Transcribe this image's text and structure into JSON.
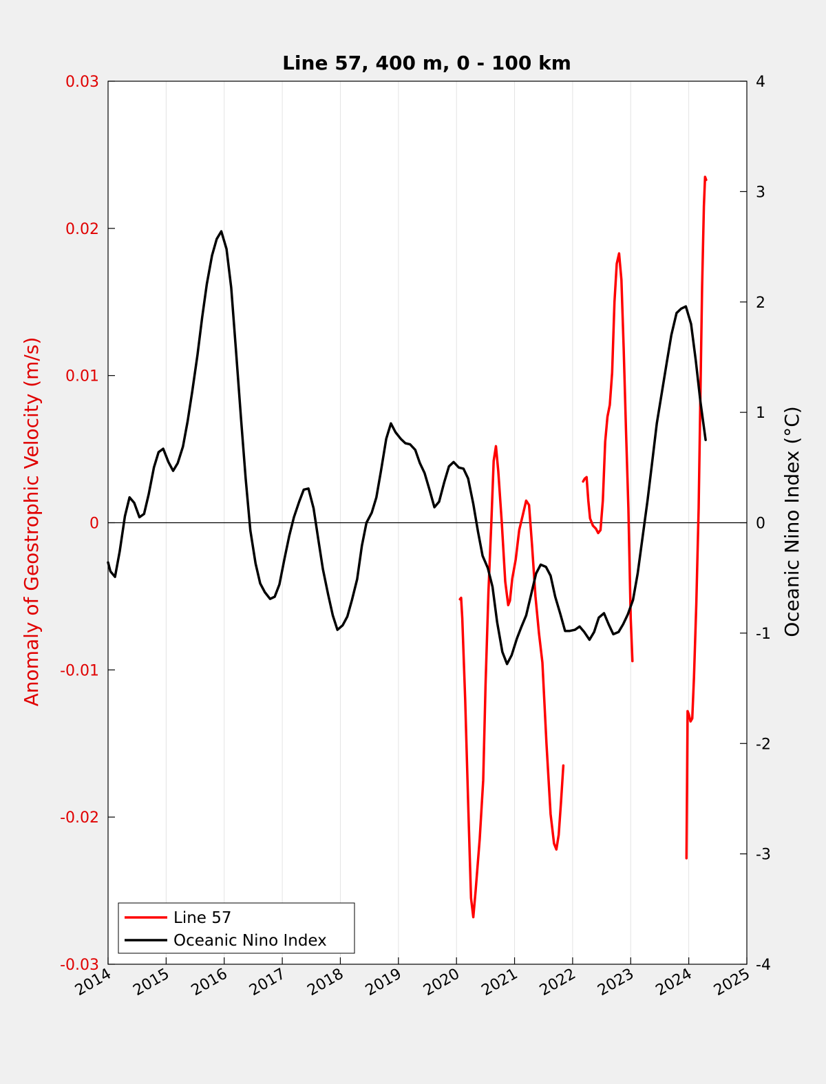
{
  "chart_data": {
    "type": "line",
    "title": "Line 57, 400 m, 0 - 100 km",
    "ylabel_left": "Anomaly of Geostrophic Velocity (m/s)",
    "ylabel_right": "Oceanic Nino Index (°C)",
    "xlim": [
      2014,
      2025
    ],
    "ylim_left": [
      -0.03,
      0.03
    ],
    "ylim_right": [
      -4,
      4
    ],
    "x_ticks": [
      "2014",
      "2015",
      "2016",
      "2017",
      "2018",
      "2019",
      "2020",
      "2021",
      "2022",
      "2023",
      "2024",
      "2025"
    ],
    "y_left_ticks": [
      "-0.03",
      "-0.02",
      "-0.01",
      "0",
      "0.01",
      "0.02",
      "0.03"
    ],
    "y_right_ticks": [
      "-4",
      "-3",
      "-2",
      "-1",
      "0",
      "1",
      "2",
      "3",
      "4"
    ],
    "vertical_grid": true,
    "zero_line": true,
    "legend_position": "bottom-left",
    "colors": {
      "left_axis": "#e00000",
      "line57": "#ff0000",
      "oni": "#000000",
      "plot_bg": "#ffffff",
      "figure_bg": "#f0f0f0"
    },
    "series": [
      {
        "name": "Line 57",
        "axis": "left",
        "color": "#ff0000",
        "segments": [
          [
            [
              2020.06,
              -0.0052
            ],
            [
              2020.08,
              -0.0051
            ],
            [
              2020.1,
              -0.0065
            ],
            [
              2020.15,
              -0.012
            ],
            [
              2020.2,
              -0.019
            ],
            [
              2020.25,
              -0.0255
            ],
            [
              2020.29,
              -0.0268
            ],
            [
              2020.33,
              -0.025
            ],
            [
              2020.4,
              -0.0215
            ],
            [
              2020.46,
              -0.0175
            ],
            [
              2020.5,
              -0.011
            ],
            [
              2020.55,
              -0.0047
            ],
            [
              2020.6,
              0.0
            ],
            [
              2020.64,
              0.0042
            ],
            [
              2020.68,
              0.0052
            ],
            [
              2020.72,
              0.0035
            ],
            [
              2020.78,
              0.0
            ],
            [
              2020.84,
              -0.004
            ],
            [
              2020.89,
              -0.0056
            ],
            [
              2020.92,
              -0.0053
            ],
            [
              2020.96,
              -0.0038
            ],
            [
              2021.02,
              -0.0025
            ],
            [
              2021.08,
              -0.0005
            ],
            [
              2021.14,
              0.0005
            ],
            [
              2021.2,
              0.0015
            ],
            [
              2021.25,
              0.0012
            ],
            [
              2021.3,
              -0.0015
            ],
            [
              2021.36,
              -0.005
            ],
            [
              2021.42,
              -0.0075
            ],
            [
              2021.48,
              -0.0095
            ],
            [
              2021.55,
              -0.015
            ],
            [
              2021.62,
              -0.0198
            ],
            [
              2021.68,
              -0.0218
            ],
            [
              2021.72,
              -0.0222
            ],
            [
              2021.76,
              -0.0212
            ],
            [
              2021.8,
              -0.019
            ],
            [
              2021.84,
              -0.0165
            ]
          ],
          [
            [
              2022.18,
              0.0028
            ],
            [
              2022.21,
              0.003
            ],
            [
              2022.24,
              0.0031
            ],
            [
              2022.27,
              0.0015
            ],
            [
              2022.3,
              0.0003
            ],
            [
              2022.35,
              -0.0002
            ],
            [
              2022.4,
              -0.0004
            ],
            [
              2022.44,
              -0.0007
            ],
            [
              2022.48,
              -0.0005
            ],
            [
              2022.52,
              0.0015
            ],
            [
              2022.56,
              0.0055
            ],
            [
              2022.6,
              0.0072
            ],
            [
              2022.64,
              0.008
            ],
            [
              2022.68,
              0.0102
            ],
            [
              2022.72,
              0.015
            ],
            [
              2022.76,
              0.0176
            ],
            [
              2022.8,
              0.0183
            ],
            [
              2022.84,
              0.0165
            ],
            [
              2022.88,
              0.0118
            ],
            [
              2022.92,
              0.0062
            ],
            [
              2022.96,
              0.001
            ],
            [
              2023.0,
              -0.0065
            ],
            [
              2023.03,
              -0.0094
            ]
          ],
          [
            [
              2023.96,
              -0.0228
            ],
            [
              2023.97,
              -0.018
            ],
            [
              2023.98,
              -0.0128
            ],
            [
              2024.0,
              -0.013
            ],
            [
              2024.03,
              -0.0135
            ],
            [
              2024.06,
              -0.0133
            ],
            [
              2024.09,
              -0.0105
            ],
            [
              2024.13,
              -0.0055
            ],
            [
              2024.17,
              0.001
            ],
            [
              2024.2,
              0.0085
            ],
            [
              2024.23,
              0.016
            ],
            [
              2024.26,
              0.0215
            ],
            [
              2024.28,
              0.0235
            ],
            [
              2024.3,
              0.0233
            ]
          ]
        ]
      },
      {
        "name": "Oceanic Nino Index",
        "axis": "right",
        "color": "#000000",
        "points": [
          [
            2014.0,
            -0.36
          ],
          [
            2014.04,
            -0.44
          ],
          [
            2014.12,
            -0.49
          ],
          [
            2014.2,
            -0.26
          ],
          [
            2014.29,
            0.06
          ],
          [
            2014.37,
            0.23
          ],
          [
            2014.45,
            0.18
          ],
          [
            2014.54,
            0.05
          ],
          [
            2014.62,
            0.08
          ],
          [
            2014.7,
            0.26
          ],
          [
            2014.79,
            0.5
          ],
          [
            2014.87,
            0.64
          ],
          [
            2014.95,
            0.67
          ],
          [
            2015.04,
            0.55
          ],
          [
            2015.12,
            0.47
          ],
          [
            2015.2,
            0.54
          ],
          [
            2015.29,
            0.69
          ],
          [
            2015.37,
            0.92
          ],
          [
            2015.45,
            1.19
          ],
          [
            2015.54,
            1.52
          ],
          [
            2015.62,
            1.86
          ],
          [
            2015.7,
            2.16
          ],
          [
            2015.79,
            2.42
          ],
          [
            2015.87,
            2.57
          ],
          [
            2015.95,
            2.64
          ],
          [
            2016.04,
            2.48
          ],
          [
            2016.12,
            2.13
          ],
          [
            2016.2,
            1.58
          ],
          [
            2016.29,
            0.94
          ],
          [
            2016.37,
            0.4
          ],
          [
            2016.45,
            -0.07
          ],
          [
            2016.54,
            -0.37
          ],
          [
            2016.62,
            -0.55
          ],
          [
            2016.7,
            -0.63
          ],
          [
            2016.79,
            -0.69
          ],
          [
            2016.87,
            -0.67
          ],
          [
            2016.95,
            -0.56
          ],
          [
            2017.04,
            -0.32
          ],
          [
            2017.12,
            -0.12
          ],
          [
            2017.2,
            0.05
          ],
          [
            2017.29,
            0.19
          ],
          [
            2017.37,
            0.3
          ],
          [
            2017.45,
            0.31
          ],
          [
            2017.54,
            0.13
          ],
          [
            2017.62,
            -0.15
          ],
          [
            2017.7,
            -0.42
          ],
          [
            2017.79,
            -0.65
          ],
          [
            2017.87,
            -0.84
          ],
          [
            2017.95,
            -0.97
          ],
          [
            2018.04,
            -0.93
          ],
          [
            2018.12,
            -0.85
          ],
          [
            2018.2,
            -0.7
          ],
          [
            2018.29,
            -0.51
          ],
          [
            2018.37,
            -0.21
          ],
          [
            2018.45,
            0.0
          ],
          [
            2018.54,
            0.09
          ],
          [
            2018.62,
            0.23
          ],
          [
            2018.7,
            0.47
          ],
          [
            2018.79,
            0.76
          ],
          [
            2018.87,
            0.9
          ],
          [
            2018.95,
            0.82
          ],
          [
            2019.04,
            0.76
          ],
          [
            2019.12,
            0.72
          ],
          [
            2019.2,
            0.71
          ],
          [
            2019.29,
            0.66
          ],
          [
            2019.37,
            0.54
          ],
          [
            2019.45,
            0.45
          ],
          [
            2019.54,
            0.29
          ],
          [
            2019.62,
            0.14
          ],
          [
            2019.7,
            0.19
          ],
          [
            2019.79,
            0.37
          ],
          [
            2019.87,
            0.51
          ],
          [
            2019.95,
            0.55
          ],
          [
            2020.04,
            0.5
          ],
          [
            2020.12,
            0.49
          ],
          [
            2020.2,
            0.4
          ],
          [
            2020.29,
            0.17
          ],
          [
            2020.37,
            -0.08
          ],
          [
            2020.45,
            -0.3
          ],
          [
            2020.54,
            -0.41
          ],
          [
            2020.62,
            -0.58
          ],
          [
            2020.7,
            -0.9
          ],
          [
            2020.79,
            -1.17
          ],
          [
            2020.87,
            -1.28
          ],
          [
            2020.95,
            -1.2
          ],
          [
            2021.04,
            -1.05
          ],
          [
            2021.12,
            -0.94
          ],
          [
            2021.2,
            -0.84
          ],
          [
            2021.29,
            -0.64
          ],
          [
            2021.37,
            -0.46
          ],
          [
            2021.45,
            -0.38
          ],
          [
            2021.54,
            -0.4
          ],
          [
            2021.62,
            -0.48
          ],
          [
            2021.7,
            -0.67
          ],
          [
            2021.79,
            -0.83
          ],
          [
            2021.87,
            -0.98
          ],
          [
            2021.95,
            -0.98
          ],
          [
            2022.04,
            -0.97
          ],
          [
            2022.12,
            -0.94
          ],
          [
            2022.2,
            -0.99
          ],
          [
            2022.29,
            -1.06
          ],
          [
            2022.37,
            -0.99
          ],
          [
            2022.45,
            -0.86
          ],
          [
            2022.54,
            -0.82
          ],
          [
            2022.62,
            -0.92
          ],
          [
            2022.7,
            -1.01
          ],
          [
            2022.79,
            -0.99
          ],
          [
            2022.87,
            -0.92
          ],
          [
            2022.95,
            -0.83
          ],
          [
            2023.04,
            -0.7
          ],
          [
            2023.12,
            -0.46
          ],
          [
            2023.2,
            -0.15
          ],
          [
            2023.29,
            0.2
          ],
          [
            2023.37,
            0.55
          ],
          [
            2023.45,
            0.9
          ],
          [
            2023.54,
            1.19
          ],
          [
            2023.62,
            1.45
          ],
          [
            2023.7,
            1.7
          ],
          [
            2023.79,
            1.9
          ],
          [
            2023.87,
            1.94
          ],
          [
            2023.95,
            1.96
          ],
          [
            2024.04,
            1.8
          ],
          [
            2024.12,
            1.47
          ],
          [
            2024.2,
            1.1
          ],
          [
            2024.29,
            0.75
          ]
        ]
      }
    ]
  }
}
